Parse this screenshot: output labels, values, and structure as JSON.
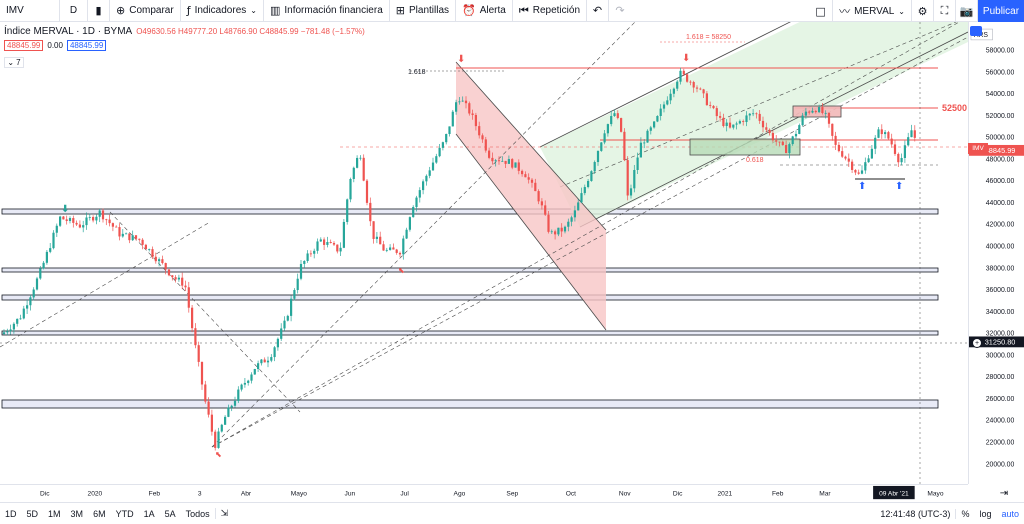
{
  "toolbar": {
    "symbol": "IMV",
    "interval": "D",
    "compare": "Comparar",
    "indicators": "Indicadores",
    "financials": "Información financiera",
    "templates": "Plantillas",
    "alert": "Alerta",
    "replay": "Repetición",
    "symbol_right": "MERVAL",
    "publish": "Publicar"
  },
  "legend": {
    "title": "Índice MERVAL · 1D · BYMA",
    "ohlc": "O49630.56 H49777.20 L48766.90 C48845.99 −781.48 (−1.57%)",
    "sell": "48845.99",
    "spread": "0.00",
    "buy": "48845.99",
    "indicator_count": "7"
  },
  "price_axis": {
    "currency": "ARS",
    "ticks": [
      "58000.00",
      "56000.00",
      "54000.00",
      "52000.00",
      "50000.00",
      "48000.00",
      "46000.00",
      "44000.00",
      "42000.00",
      "40000.00",
      "38000.00",
      "36000.00",
      "34000.00",
      "32000.00",
      "30000.00",
      "28000.00",
      "26000.00",
      "24000.00",
      "22000.00",
      "20000.00"
    ],
    "current_tag_symbol": "IMV",
    "current_price": "48845.99",
    "crosshair_price": "31250.80"
  },
  "time_axis": {
    "ticks": [
      "Dic",
      "2020",
      "Feb",
      "3",
      "Abr",
      "Mayo",
      "Jun",
      "Jul",
      "Ago",
      "Sep",
      "Oct",
      "Nov",
      "Dic",
      "2021",
      "Feb",
      "Mar",
      "09 Abr '21",
      "Mayo"
    ]
  },
  "annotations": {
    "fib_top": "1.618",
    "fib_label": "1.618 = 58250",
    "level_52500": "52500",
    "fib_0618": "0.618"
  },
  "bottom_bar": {
    "ranges": [
      "1D",
      "5D",
      "1M",
      "3M",
      "6M",
      "YTD",
      "1A",
      "5A",
      "Todos"
    ],
    "clock": "12:41:48 (UTC-3)",
    "percent": "%",
    "log": "log",
    "auto": "auto"
  },
  "colors": {
    "up": "#26a69a",
    "down": "#ef5350",
    "accent": "#2962ff",
    "channel_fill": "#d7eed7",
    "down_channel_fill": "#f7c5c5"
  }
}
